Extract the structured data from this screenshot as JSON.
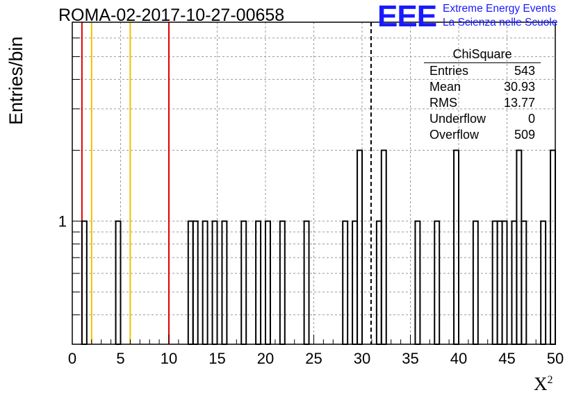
{
  "title": "ROMA-02-2017-10-27-00658",
  "logo": {
    "mark": "EEE",
    "line1": "Extreme Energy Events",
    "line2": "La Scienza nelle Scuole",
    "color": "#1a1aff"
  },
  "stats": {
    "title": "ChiSquare",
    "rows": [
      {
        "key": "Entries",
        "value": "543"
      },
      {
        "key": "Mean",
        "value": "30.93"
      },
      {
        "key": "RMS",
        "value": "13.77"
      },
      {
        "key": "Underflow",
        "value": "0"
      },
      {
        "key": "Overflow",
        "value": "509"
      }
    ]
  },
  "chart_data": {
    "type": "bar",
    "title": "ROMA-02-2017-10-27-00658",
    "xlabel": "X",
    "xlabel_superscript": "2",
    "ylabel": "Entries/bin",
    "xlim": [
      0,
      50
    ],
    "ylim": [
      0.3,
      7
    ],
    "y_scale": "log",
    "grid": true,
    "x_ticks": [
      "0",
      "5",
      "10",
      "15",
      "20",
      "25",
      "30",
      "35",
      "40",
      "45",
      "50"
    ],
    "y_tick_labels": [
      "1"
    ],
    "bin_width": 0.5,
    "bins": [
      {
        "x": 1.0,
        "count": 1
      },
      {
        "x": 4.5,
        "count": 1
      },
      {
        "x": 12.0,
        "count": 1
      },
      {
        "x": 12.5,
        "count": 1
      },
      {
        "x": 13.5,
        "count": 1
      },
      {
        "x": 14.5,
        "count": 1
      },
      {
        "x": 15.5,
        "count": 1
      },
      {
        "x": 17.5,
        "count": 1
      },
      {
        "x": 19.0,
        "count": 1
      },
      {
        "x": 20.0,
        "count": 1
      },
      {
        "x": 21.5,
        "count": 1
      },
      {
        "x": 24.0,
        "count": 1
      },
      {
        "x": 28.0,
        "count": 1
      },
      {
        "x": 29.0,
        "count": 1
      },
      {
        "x": 29.5,
        "count": 2
      },
      {
        "x": 31.5,
        "count": 1
      },
      {
        "x": 32.0,
        "count": 2
      },
      {
        "x": 35.5,
        "count": 1
      },
      {
        "x": 37.5,
        "count": 1
      },
      {
        "x": 39.5,
        "count": 2
      },
      {
        "x": 41.5,
        "count": 1
      },
      {
        "x": 43.5,
        "count": 1
      },
      {
        "x": 44.0,
        "count": 1
      },
      {
        "x": 44.5,
        "count": 1
      },
      {
        "x": 45.5,
        "count": 1
      },
      {
        "x": 46.0,
        "count": 2
      },
      {
        "x": 46.5,
        "count": 1
      },
      {
        "x": 48.5,
        "count": 1
      },
      {
        "x": 49.5,
        "count": 2
      }
    ],
    "vertical_lines": [
      {
        "x": 1.0,
        "color": "#e00000",
        "style": "solid"
      },
      {
        "x": 2.0,
        "color": "#f0c000",
        "style": "solid"
      },
      {
        "x": 6.0,
        "color": "#f0c000",
        "style": "solid"
      },
      {
        "x": 10.0,
        "color": "#e00000",
        "style": "solid"
      },
      {
        "x": 30.93,
        "color": "#000000",
        "style": "dashed"
      }
    ]
  }
}
